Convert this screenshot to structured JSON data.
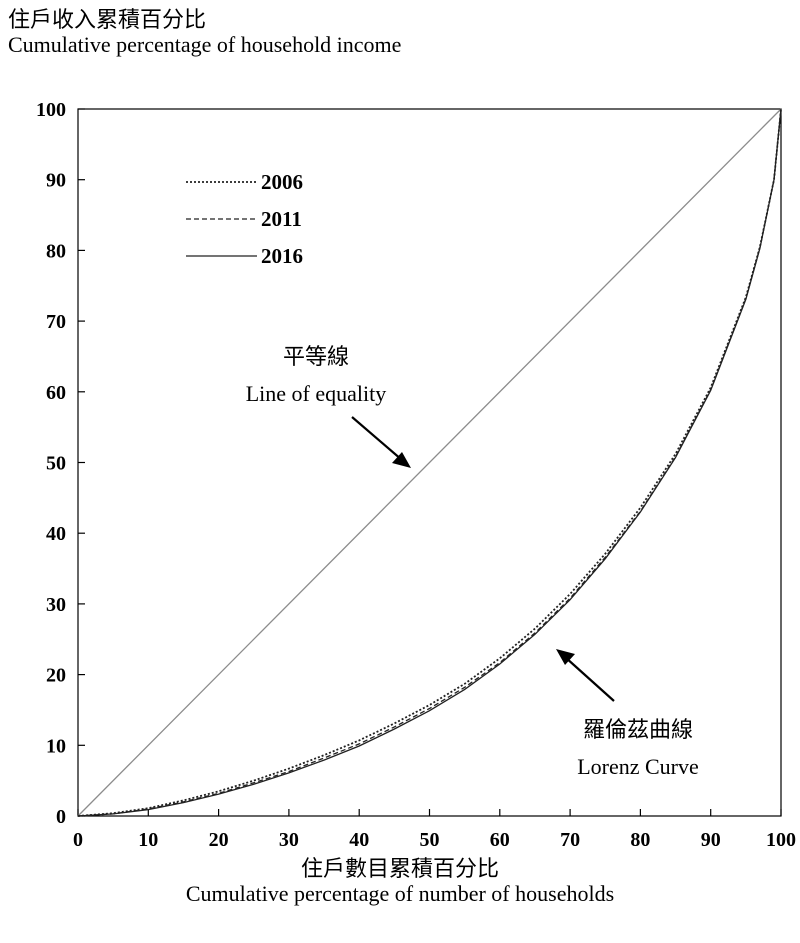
{
  "chart_data": {
    "type": "line",
    "ylabel_zh": "住戶收入累積百分比",
    "ylabel_en": "Cumulative percentage of household income",
    "xlabel_zh": "住戶數目累積百分比",
    "xlabel_en": "Cumulative percentage of number of households",
    "xlim": [
      0,
      100
    ],
    "ylim": [
      0,
      100
    ],
    "x_ticks": [
      "0",
      "10",
      "20",
      "30",
      "40",
      "50",
      "60",
      "70",
      "80",
      "90",
      "100"
    ],
    "y_ticks": [
      "0",
      "10",
      "20",
      "30",
      "40",
      "50",
      "60",
      "70",
      "80",
      "90",
      "100"
    ],
    "grid": false,
    "legend_position": "top-left",
    "series": [
      {
        "name": "2006",
        "style": "dotted",
        "x": [
          0,
          5,
          10,
          15,
          20,
          25,
          30,
          35,
          40,
          45,
          50,
          55,
          60,
          65,
          70,
          75,
          80,
          85,
          90,
          95,
          97,
          99,
          100
        ],
        "y": [
          0,
          0.4,
          1.1,
          2.2,
          3.5,
          5.0,
          6.7,
          8.6,
          10.7,
          13.1,
          15.7,
          18.7,
          22.3,
          26.5,
          31.4,
          37.1,
          43.6,
          51.2,
          60.6,
          73.4,
          80.5,
          90.0,
          100
        ]
      },
      {
        "name": "2011",
        "style": "dashed",
        "x": [
          0,
          5,
          10,
          15,
          20,
          25,
          30,
          35,
          40,
          45,
          50,
          55,
          60,
          65,
          70,
          75,
          80,
          85,
          90,
          95,
          97,
          99,
          100
        ],
        "y": [
          0,
          0.3,
          1.0,
          2.0,
          3.2,
          4.7,
          6.3,
          8.2,
          10.2,
          12.6,
          15.2,
          18.2,
          21.7,
          25.9,
          30.8,
          36.6,
          43.1,
          50.8,
          60.3,
          73.2,
          80.4,
          90.0,
          100
        ]
      },
      {
        "name": "2016",
        "style": "solid",
        "x": [
          0,
          5,
          10,
          15,
          20,
          25,
          30,
          35,
          40,
          45,
          50,
          55,
          60,
          65,
          70,
          75,
          80,
          85,
          90,
          95,
          97,
          99,
          100
        ],
        "y": [
          0,
          0.3,
          0.9,
          1.9,
          3.1,
          4.5,
          6.1,
          7.9,
          9.9,
          12.3,
          14.9,
          17.9,
          21.5,
          25.7,
          30.6,
          36.4,
          43.0,
          50.7,
          60.2,
          73.1,
          80.3,
          90.0,
          100
        ]
      }
    ],
    "equality_line": {
      "x": [
        0,
        100
      ],
      "y": [
        0,
        100
      ]
    },
    "annotations": [
      {
        "zh": "平等線",
        "en": "Line of equality"
      },
      {
        "zh": "羅倫茲曲線",
        "en": "Lorenz Curve"
      }
    ]
  }
}
